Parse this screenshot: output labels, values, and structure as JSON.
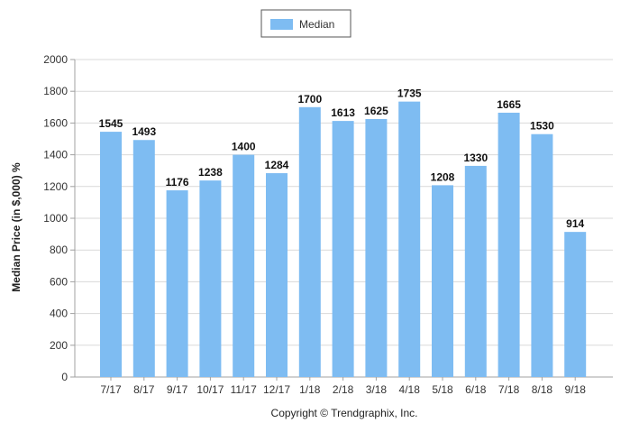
{
  "chart_data": {
    "type": "bar",
    "categories": [
      "7/17",
      "8/17",
      "9/17",
      "10/17",
      "11/17",
      "12/17",
      "1/18",
      "2/18",
      "3/18",
      "4/18",
      "5/18",
      "6/18",
      "7/18",
      "8/18",
      "9/18"
    ],
    "series": [
      {
        "name": "Median",
        "values": [
          1545,
          1493,
          1176,
          1238,
          1400,
          1284,
          1700,
          1613,
          1625,
          1735,
          1208,
          1330,
          1665,
          1530,
          914
        ]
      }
    ],
    "ylabel": "Median Price (in $,000) %",
    "xlabel": "",
    "ylim": [
      0,
      2000
    ],
    "yticks": [
      0,
      200,
      400,
      600,
      800,
      1000,
      1200,
      1400,
      1600,
      1800,
      2000
    ],
    "grid": true,
    "legend_position": "top-center",
    "footer": "Copyright © Trendgraphix, Inc.",
    "colors": {
      "bar": "#7ebcf2",
      "grid": "#d9d9d9",
      "axis": "#a0a0a0",
      "text": "#333333"
    }
  }
}
